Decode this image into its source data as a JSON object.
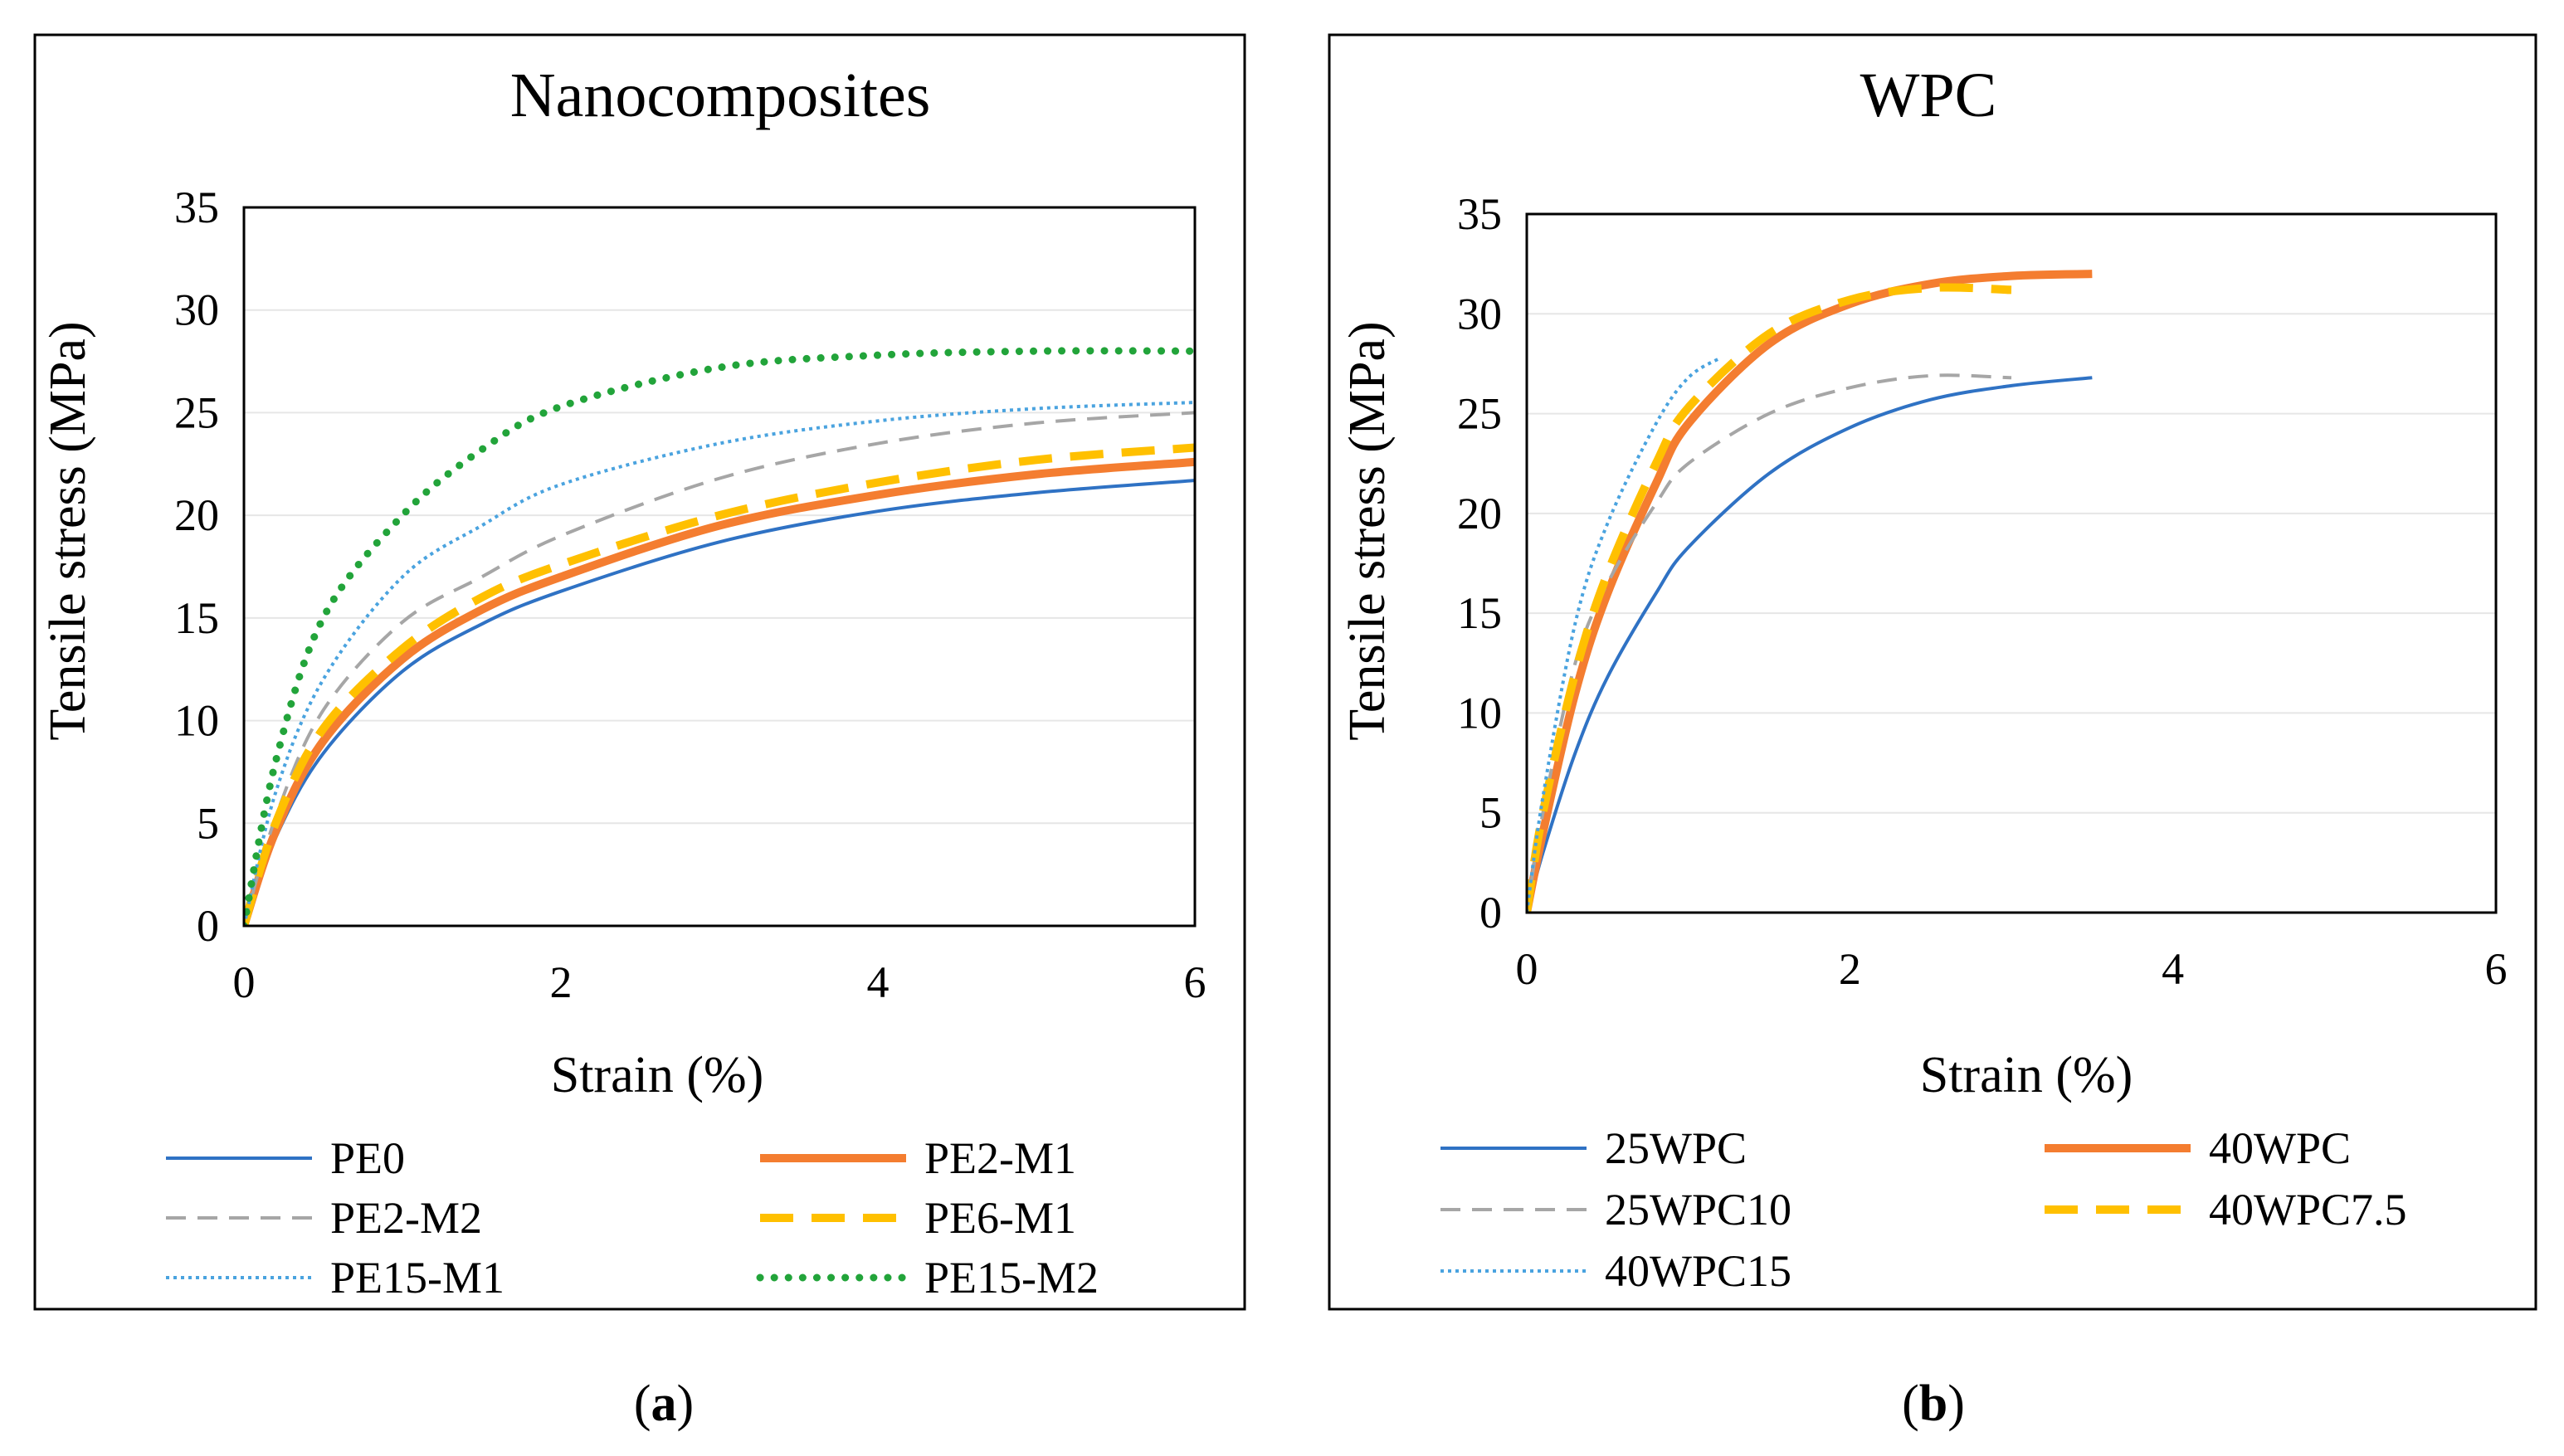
{
  "colors": {
    "blue": "#2f72c4",
    "orange": "#f47d30",
    "gray": "#a6a6a6",
    "gold": "#ffc000",
    "lightblue": "#4aa3df",
    "green": "#22a43a",
    "grid": "#e6e6e6",
    "frame": "#000000"
  },
  "chart_data": [
    {
      "id": "a",
      "type": "line",
      "title": "Nanocomposites",
      "xlabel": "Strain (%)",
      "ylabel": "Tensile stress (MPa)",
      "xlim": [
        0,
        6
      ],
      "ylim": [
        0,
        35
      ],
      "xticks": [
        0,
        2,
        4,
        6
      ],
      "yticks": [
        0,
        5,
        10,
        15,
        20,
        25,
        30,
        35
      ],
      "grid": "horizontal",
      "legend": "bottom",
      "caption_label": "a",
      "series": [
        {
          "name": "PE0",
          "style": "solid",
          "color": "#2f72c4",
          "x": [
            0,
            0.2,
            0.5,
            1,
            1.5,
            2,
            3,
            4,
            5,
            6
          ],
          "y": [
            0,
            4.3,
            8.4,
            12.4,
            14.7,
            16.3,
            18.7,
            20.2,
            21.1,
            21.7
          ]
        },
        {
          "name": "PE2-M1",
          "style": "thick-solid",
          "color": "#f47d30",
          "x": [
            0,
            0.2,
            0.5,
            1,
            1.5,
            2,
            3,
            4,
            5,
            6
          ],
          "y": [
            0,
            4.6,
            9.0,
            13.0,
            15.4,
            17.0,
            19.5,
            21.0,
            22.0,
            22.6
          ]
        },
        {
          "name": "PE2-M2",
          "style": "dash",
          "color": "#a6a6a6",
          "x": [
            0,
            0.2,
            0.5,
            1,
            1.5,
            2,
            3,
            4,
            5,
            6
          ],
          "y": [
            0,
            5.3,
            10.5,
            14.8,
            17.0,
            19.0,
            21.8,
            23.5,
            24.5,
            25.0
          ]
        },
        {
          "name": "PE6-M1",
          "style": "thick-dash",
          "color": "#ffc000",
          "x": [
            0,
            0.2,
            0.5,
            1,
            1.5,
            2,
            3,
            4,
            5,
            6
          ],
          "y": [
            0,
            5.0,
            9.6,
            13.5,
            16.0,
            17.6,
            20.0,
            21.6,
            22.7,
            23.3
          ]
        },
        {
          "name": "PE15-M1",
          "style": "dot",
          "color": "#4aa3df",
          "x": [
            0,
            0.2,
            0.5,
            1,
            1.5,
            2,
            3,
            4,
            5,
            6
          ],
          "y": [
            0,
            6.5,
            12.0,
            17.0,
            19.5,
            21.5,
            23.5,
            24.6,
            25.2,
            25.5
          ]
        },
        {
          "name": "PE15-M2",
          "style": "thick-dot",
          "color": "#22a43a",
          "x": [
            0,
            0.2,
            0.5,
            1,
            1.5,
            2,
            3,
            4,
            5,
            6
          ],
          "y": [
            0,
            8.0,
            15.0,
            20.0,
            23.2,
            25.3,
            27.2,
            27.8,
            28.0,
            28.0
          ]
        }
      ]
    },
    {
      "id": "b",
      "type": "line",
      "title": "WPC",
      "xlabel": "Strain (%)",
      "ylabel": "Tensile stress (MPa)",
      "xlim": [
        0,
        6
      ],
      "ylim": [
        0,
        35
      ],
      "xticks": [
        0,
        2,
        4,
        6
      ],
      "yticks": [
        0,
        5,
        10,
        15,
        20,
        25,
        30,
        35
      ],
      "grid": "horizontal",
      "legend": "bottom",
      "caption_label": "b",
      "series": [
        {
          "name": "25WPC",
          "style": "solid",
          "color": "#2f72c4",
          "x": [
            0,
            0.1,
            0.3,
            0.5,
            0.8,
            1,
            1.5,
            2,
            2.5,
            3,
            3.5
          ],
          "y": [
            0,
            3.0,
            8.0,
            11.8,
            16.0,
            18.3,
            22.0,
            24.3,
            25.7,
            26.4,
            26.8
          ]
        },
        {
          "name": "40WPC",
          "style": "thick-solid",
          "color": "#f47d30",
          "x": [
            0,
            0.1,
            0.3,
            0.5,
            0.8,
            1,
            1.5,
            2,
            2.5,
            3,
            3.5
          ],
          "y": [
            0,
            4.0,
            11.0,
            16.0,
            21.5,
            24.5,
            28.5,
            30.5,
            31.5,
            31.9,
            32.0
          ]
        },
        {
          "name": "25WPC10",
          "style": "dash",
          "color": "#a6a6a6",
          "x": [
            0,
            0.1,
            0.3,
            0.5,
            0.8,
            1,
            1.5,
            2,
            2.5,
            3
          ],
          "y": [
            0,
            5.0,
            12.5,
            16.5,
            20.5,
            22.5,
            25.0,
            26.3,
            26.9,
            26.8
          ]
        },
        {
          "name": "40WPC7.5",
          "style": "thick-dash",
          "color": "#ffc000",
          "x": [
            0,
            0.1,
            0.3,
            0.5,
            0.8,
            1,
            1.5,
            2,
            2.5,
            3
          ],
          "y": [
            0,
            5.0,
            12.0,
            17.0,
            22.5,
            25.3,
            29.0,
            30.7,
            31.3,
            31.2
          ]
        },
        {
          "name": "40WPC15",
          "style": "dot",
          "color": "#4aa3df",
          "x": [
            0,
            0.1,
            0.3,
            0.5,
            0.8,
            1,
            1.2
          ],
          "y": [
            0,
            5.8,
            14.5,
            19.5,
            24.5,
            26.8,
            27.8
          ]
        }
      ]
    }
  ]
}
